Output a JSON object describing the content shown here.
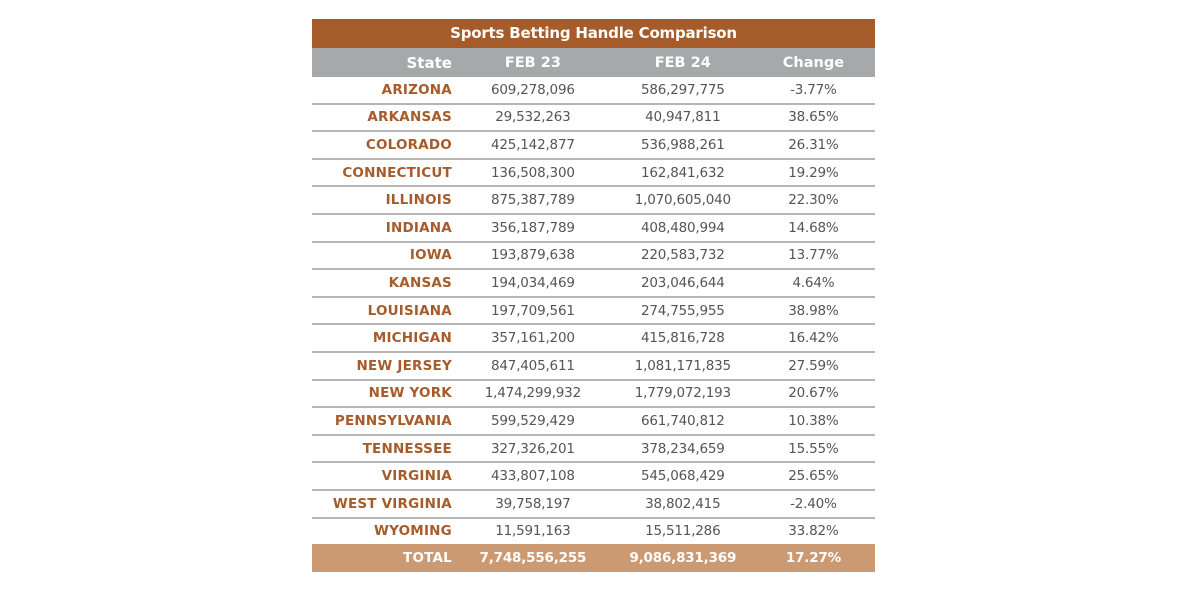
{
  "table": {
    "title": "Sports Betting Handle Comparison",
    "headers": {
      "state": "State",
      "feb23": "FEB 23",
      "feb24": "FEB 24",
      "change": "Change"
    },
    "rows": [
      {
        "state": "ARIZONA",
        "feb23": "609,278,096",
        "feb24": "586,297,775",
        "change": "-3.77%"
      },
      {
        "state": "ARKANSAS",
        "feb23": "29,532,263",
        "feb24": "40,947,811",
        "change": "38.65%"
      },
      {
        "state": "COLORADO",
        "feb23": "425,142,877",
        "feb24": "536,988,261",
        "change": "26.31%"
      },
      {
        "state": "CONNECTICUT",
        "feb23": "136,508,300",
        "feb24": "162,841,632",
        "change": "19.29%"
      },
      {
        "state": "ILLINOIS",
        "feb23": "875,387,789",
        "feb24": "1,070,605,040",
        "change": "22.30%"
      },
      {
        "state": "INDIANA",
        "feb23": "356,187,789",
        "feb24": "408,480,994",
        "change": "14.68%"
      },
      {
        "state": "IOWA",
        "feb23": "193,879,638",
        "feb24": "220,583,732",
        "change": "13.77%"
      },
      {
        "state": "KANSAS",
        "feb23": "194,034,469",
        "feb24": "203,046,644",
        "change": "4.64%"
      },
      {
        "state": "LOUISIANA",
        "feb23": "197,709,561",
        "feb24": "274,755,955",
        "change": "38.98%"
      },
      {
        "state": "MICHIGAN",
        "feb23": "357,161,200",
        "feb24": "415,816,728",
        "change": "16.42%"
      },
      {
        "state": "NEW JERSEY",
        "feb23": "847,405,611",
        "feb24": "1,081,171,835",
        "change": "27.59%"
      },
      {
        "state": "NEW YORK",
        "feb23": "1,474,299,932",
        "feb24": "1,779,072,193",
        "change": "20.67%"
      },
      {
        "state": "PENNSYLVANIA",
        "feb23": "599,529,429",
        "feb24": "661,740,812",
        "change": "10.38%"
      },
      {
        "state": "TENNESSEE",
        "feb23": "327,326,201",
        "feb24": "378,234,659",
        "change": "15.55%"
      },
      {
        "state": "VIRGINIA",
        "feb23": "433,807,108",
        "feb24": "545,068,429",
        "change": "25.65%"
      },
      {
        "state": "WEST VIRGINIA",
        "feb23": "39,758,197",
        "feb24": "38,802,415",
        "change": "-2.40%"
      },
      {
        "state": "WYOMING",
        "feb23": "11,591,163",
        "feb24": "15,511,286",
        "change": "33.82%"
      }
    ],
    "total": {
      "state": "TOTAL",
      "feb23": "7,748,556,255",
      "feb24": "9,086,831,369",
      "change": "17.27%"
    }
  },
  "colors": {
    "title_bg": "#a65b2a",
    "header_bg": "#a7a8aa",
    "state_text": "#a65b2a",
    "total_bg": "#cc9a72",
    "divider": "#b4b5b7"
  }
}
